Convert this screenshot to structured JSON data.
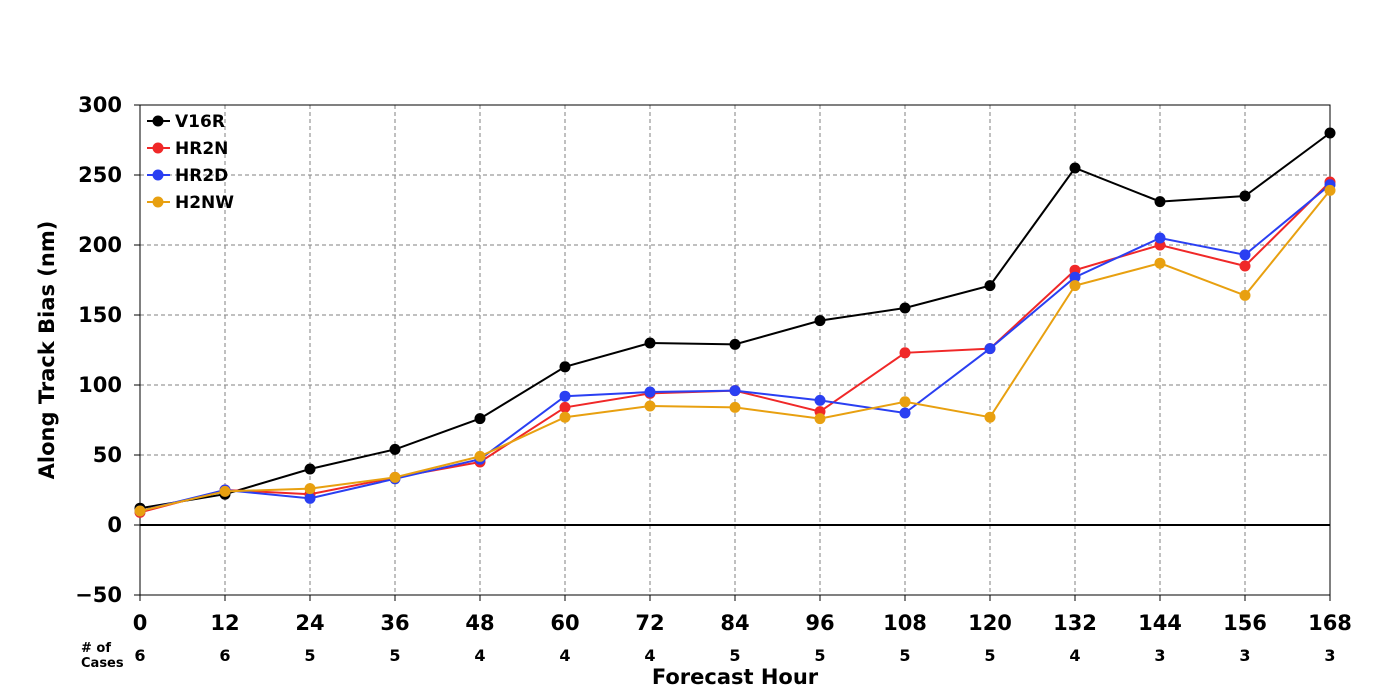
{
  "chart_data": {
    "type": "line",
    "xlabel": "Forecast Hour",
    "ylabel": "Along Track Bias (nm)",
    "x": [
      0,
      12,
      24,
      36,
      48,
      60,
      72,
      84,
      96,
      108,
      120,
      132,
      144,
      156,
      168
    ],
    "xlim": [
      0,
      168
    ],
    "ylim": [
      -50,
      300
    ],
    "yticks": [
      -50,
      0,
      50,
      100,
      150,
      200,
      250,
      300
    ],
    "yticklabels": [
      "−50",
      "0",
      "50",
      "100",
      "150",
      "200",
      "250",
      "300"
    ],
    "grid": true,
    "zero_line": true,
    "legend_position": "top-left",
    "cases_label": "# of\nCases",
    "cases": [
      6,
      6,
      5,
      5,
      4,
      4,
      4,
      5,
      5,
      5,
      5,
      4,
      3,
      3,
      3
    ],
    "series": [
      {
        "name": "V16R",
        "color": "#000000",
        "values": [
          12,
          22,
          40,
          54,
          76,
          113,
          130,
          129,
          146,
          155,
          171,
          255,
          231,
          235,
          280
        ]
      },
      {
        "name": "HR2N",
        "color": "#f02828",
        "values": [
          9,
          25,
          22,
          34,
          45,
          84,
          94,
          96,
          81,
          123,
          126,
          182,
          200,
          185,
          245
        ]
      },
      {
        "name": "HR2D",
        "color": "#2a3ff2",
        "values": [
          10,
          25,
          19,
          33,
          47,
          92,
          95,
          96,
          89,
          80,
          126,
          177,
          205,
          193,
          243
        ]
      },
      {
        "name": "H2NW",
        "color": "#e8a010",
        "values": [
          10,
          24,
          26,
          34,
          49,
          77,
          85,
          84,
          76,
          88,
          77,
          171,
          187,
          164,
          239
        ]
      }
    ]
  }
}
